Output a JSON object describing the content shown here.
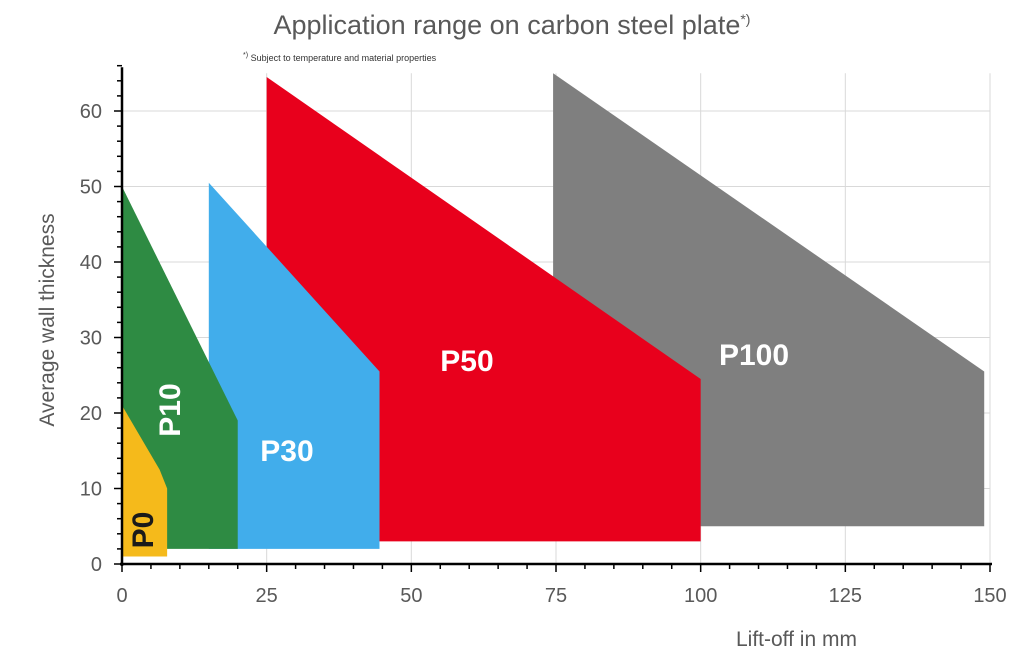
{
  "chart_data": {
    "type": "area",
    "title": "Application range on carbon steel plate",
    "title_marker": "*)",
    "note_marker": "*)",
    "note": "Subject to temperature and material properties",
    "xlabel": "Lift-off in mm",
    "ylabel": "Average wall thickness",
    "xlim": [
      0,
      150
    ],
    "ylim": [
      0,
      65
    ],
    "xticks": [
      0,
      25,
      50,
      75,
      100,
      125,
      150
    ],
    "yticks": [
      0,
      10,
      20,
      30,
      40,
      50,
      60
    ],
    "grid": true,
    "series": [
      {
        "name": "P100",
        "color": "#7F7F7F",
        "label_color": "#FFFFFF",
        "points": [
          [
            74.5,
            65
          ],
          [
            149,
            25.5
          ],
          [
            149,
            5
          ],
          [
            74.5,
            5
          ]
        ]
      },
      {
        "name": "P50",
        "color": "#E8001C",
        "label_color": "#FFFFFF",
        "points": [
          [
            25,
            64.5
          ],
          [
            100,
            24.5
          ],
          [
            100,
            3
          ],
          [
            25,
            3
          ]
        ]
      },
      {
        "name": "P30",
        "color": "#41ADEB",
        "label_color": "#FFFFFF",
        "points": [
          [
            15,
            50.5
          ],
          [
            44.5,
            25.5
          ],
          [
            44.5,
            2
          ],
          [
            15,
            2
          ]
        ]
      },
      {
        "name": "P10",
        "color": "#2E8B43",
        "label_color": "#FFFFFF",
        "points": [
          [
            0,
            50
          ],
          [
            20,
            19
          ],
          [
            20,
            2
          ],
          [
            0,
            2
          ]
        ]
      },
      {
        "name": "P0",
        "color": "#F5BA1B",
        "label_color": "#1A1A1A",
        "points": [
          [
            0,
            21
          ],
          [
            6.5,
            12.5
          ],
          [
            7.8,
            10
          ],
          [
            7.8,
            1
          ],
          [
            0,
            1
          ]
        ]
      }
    ]
  }
}
